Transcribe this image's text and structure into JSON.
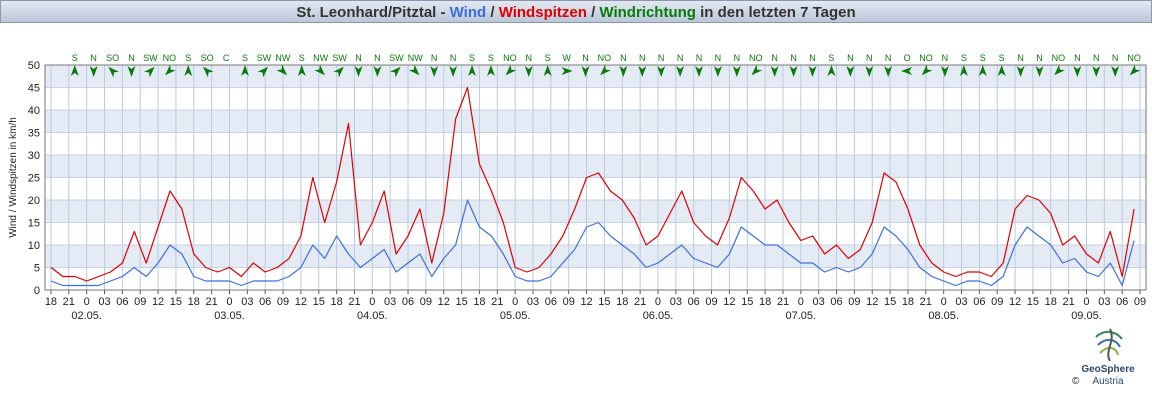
{
  "chart_data": {
    "type": "line",
    "title_parts": [
      {
        "text": "St. Leonhard/Pitztal - ",
        "color": "#333333"
      },
      {
        "text": "Wind",
        "color": "#3d6ee0"
      },
      {
        "text": " / ",
        "color": "#333333"
      },
      {
        "text": "Windspitzen",
        "color": "#e00000"
      },
      {
        "text": " / ",
        "color": "#333333"
      },
      {
        "text": "Windrichtung",
        "color": "#0a7a0a"
      },
      {
        "text": " in den letzten 7 Tagen",
        "color": "#333333"
      }
    ],
    "y_label": "Wind / Windspitzen in km/h",
    "ylim": [
      0,
      50
    ],
    "yticks": [
      0,
      5,
      10,
      15,
      20,
      25,
      30,
      35,
      40,
      45,
      50
    ],
    "xlim": [
      -1,
      184
    ],
    "grid": true,
    "xticks": [
      {
        "value": 0,
        "label": "18"
      },
      {
        "value": 3,
        "label": "21"
      },
      {
        "value": 6,
        "label": "0"
      },
      {
        "value": 9,
        "label": "03"
      },
      {
        "value": 12,
        "label": "06"
      },
      {
        "value": 15,
        "label": "09"
      },
      {
        "value": 18,
        "label": "12"
      },
      {
        "value": 21,
        "label": "15"
      },
      {
        "value": 24,
        "label": "18"
      },
      {
        "value": 27,
        "label": "21"
      },
      {
        "value": 30,
        "label": "0"
      },
      {
        "value": 33,
        "label": "03"
      },
      {
        "value": 36,
        "label": "06"
      },
      {
        "value": 39,
        "label": "09"
      },
      {
        "value": 42,
        "label": "12"
      },
      {
        "value": 45,
        "label": "15"
      },
      {
        "value": 48,
        "label": "18"
      },
      {
        "value": 51,
        "label": "21"
      },
      {
        "value": 54,
        "label": "0"
      },
      {
        "value": 57,
        "label": "03"
      },
      {
        "value": 60,
        "label": "06"
      },
      {
        "value": 63,
        "label": "09"
      },
      {
        "value": 66,
        "label": "12"
      },
      {
        "value": 69,
        "label": "15"
      },
      {
        "value": 72,
        "label": "18"
      },
      {
        "value": 75,
        "label": "21"
      },
      {
        "value": 78,
        "label": "0"
      },
      {
        "value": 81,
        "label": "03"
      },
      {
        "value": 84,
        "label": "06"
      },
      {
        "value": 87,
        "label": "09"
      },
      {
        "value": 90,
        "label": "12"
      },
      {
        "value": 93,
        "label": "15"
      },
      {
        "value": 96,
        "label": "18"
      },
      {
        "value": 99,
        "label": "21"
      },
      {
        "value": 102,
        "label": "0"
      },
      {
        "value": 105,
        "label": "03"
      },
      {
        "value": 108,
        "label": "06"
      },
      {
        "value": 111,
        "label": "09"
      },
      {
        "value": 114,
        "label": "12"
      },
      {
        "value": 117,
        "label": "15"
      },
      {
        "value": 120,
        "label": "18"
      },
      {
        "value": 123,
        "label": "21"
      },
      {
        "value": 126,
        "label": "0"
      },
      {
        "value": 129,
        "label": "03"
      },
      {
        "value": 132,
        "label": "06"
      },
      {
        "value": 135,
        "label": "09"
      },
      {
        "value": 138,
        "label": "12"
      },
      {
        "value": 141,
        "label": "15"
      },
      {
        "value": 144,
        "label": "18"
      },
      {
        "value": 147,
        "label": "21"
      },
      {
        "value": 150,
        "label": "0"
      },
      {
        "value": 153,
        "label": "03"
      },
      {
        "value": 156,
        "label": "06"
      },
      {
        "value": 159,
        "label": "09"
      },
      {
        "value": 162,
        "label": "12"
      },
      {
        "value": 165,
        "label": "15"
      },
      {
        "value": 168,
        "label": "18"
      },
      {
        "value": 171,
        "label": "21"
      },
      {
        "value": 174,
        "label": "0"
      },
      {
        "value": 177,
        "label": "03"
      },
      {
        "value": 180,
        "label": "06"
      },
      {
        "value": 183,
        "label": "09"
      }
    ],
    "date_labels": [
      {
        "value": 6,
        "label": "02.05."
      },
      {
        "value": 30,
        "label": "03.05."
      },
      {
        "value": 54,
        "label": "04.05."
      },
      {
        "value": 78,
        "label": "05.05."
      },
      {
        "value": 102,
        "label": "06.05."
      },
      {
        "value": 126,
        "label": "07.05."
      },
      {
        "value": 150,
        "label": "08.05."
      },
      {
        "value": 174,
        "label": "09.05."
      }
    ],
    "x": [
      0,
      2,
      4,
      6,
      8,
      10,
      12,
      14,
      16,
      18,
      20,
      22,
      24,
      26,
      28,
      30,
      32,
      34,
      36,
      38,
      40,
      42,
      44,
      46,
      48,
      50,
      52,
      54,
      56,
      58,
      60,
      62,
      64,
      66,
      68,
      70,
      72,
      74,
      76,
      78,
      80,
      82,
      84,
      86,
      88,
      90,
      92,
      94,
      96,
      98,
      100,
      102,
      104,
      106,
      108,
      110,
      112,
      114,
      116,
      118,
      120,
      122,
      124,
      126,
      128,
      130,
      132,
      134,
      136,
      138,
      140,
      142,
      144,
      146,
      148,
      150,
      152,
      154,
      156,
      158,
      160,
      162,
      164,
      166,
      168,
      170,
      172,
      174,
      176,
      178,
      180,
      182
    ],
    "series": [
      {
        "color": "#e00000",
        "values": [
          5,
          3,
          3,
          2,
          3,
          4,
          6,
          13,
          6,
          14,
          22,
          18,
          8,
          5,
          4,
          5,
          3,
          6,
          4,
          5,
          7,
          12,
          25,
          15,
          24,
          37,
          10,
          15,
          22,
          8,
          12,
          18,
          6,
          17,
          38,
          45,
          28,
          22,
          15,
          5,
          4,
          5,
          8,
          12,
          18,
          25,
          26,
          22,
          20,
          16,
          10,
          12,
          17,
          22,
          15,
          12,
          10,
          16,
          25,
          22,
          18,
          20,
          15,
          11,
          12,
          8,
          10,
          7,
          9,
          15,
          26,
          24,
          18,
          10,
          6,
          4,
          3,
          4,
          4,
          3,
          6,
          18,
          21,
          20,
          17,
          10,
          12,
          8,
          6,
          13,
          3,
          18
        ]
      },
      {
        "color": "#3d6ee0",
        "values": [
          2,
          1,
          1,
          1,
          1,
          2,
          3,
          5,
          3,
          6,
          10,
          8,
          3,
          2,
          2,
          2,
          1,
          2,
          2,
          2,
          3,
          5,
          10,
          7,
          12,
          8,
          5,
          7,
          9,
          4,
          6,
          8,
          3,
          7,
          10,
          20,
          14,
          12,
          8,
          3,
          2,
          2,
          3,
          6,
          9,
          14,
          15,
          12,
          10,
          8,
          5,
          6,
          8,
          10,
          7,
          6,
          5,
          8,
          14,
          12,
          10,
          10,
          8,
          6,
          6,
          4,
          5,
          4,
          5,
          8,
          14,
          12,
          9,
          5,
          3,
          2,
          1,
          2,
          2,
          1,
          3,
          10,
          14,
          12,
          10,
          6,
          7,
          4,
          3,
          6,
          1,
          11
        ]
      }
    ],
    "directions": [
      "S",
      "N",
      "SO",
      "N",
      "SW",
      "NO",
      "S",
      "SO",
      "C",
      "S",
      "SW",
      "NW",
      "S",
      "NW",
      "SW",
      "N",
      "N",
      "SW",
      "NW",
      "N",
      "N",
      "S",
      "S",
      "NO",
      "N",
      "S",
      "W",
      "N",
      "NO",
      "N",
      "N",
      "N",
      "N",
      "N",
      "N",
      "N",
      "NO",
      "N",
      "N",
      "N",
      "S",
      "N",
      "N",
      "N",
      "O",
      "NO",
      "N",
      "S",
      "S",
      "S",
      "N",
      "N",
      "NO",
      "N",
      "N",
      "N",
      "NO"
    ],
    "direction_color": "#0a7a0a",
    "logo": {
      "name": "GeoSphere",
      "sub": "Austria",
      "copyright": "©"
    }
  }
}
